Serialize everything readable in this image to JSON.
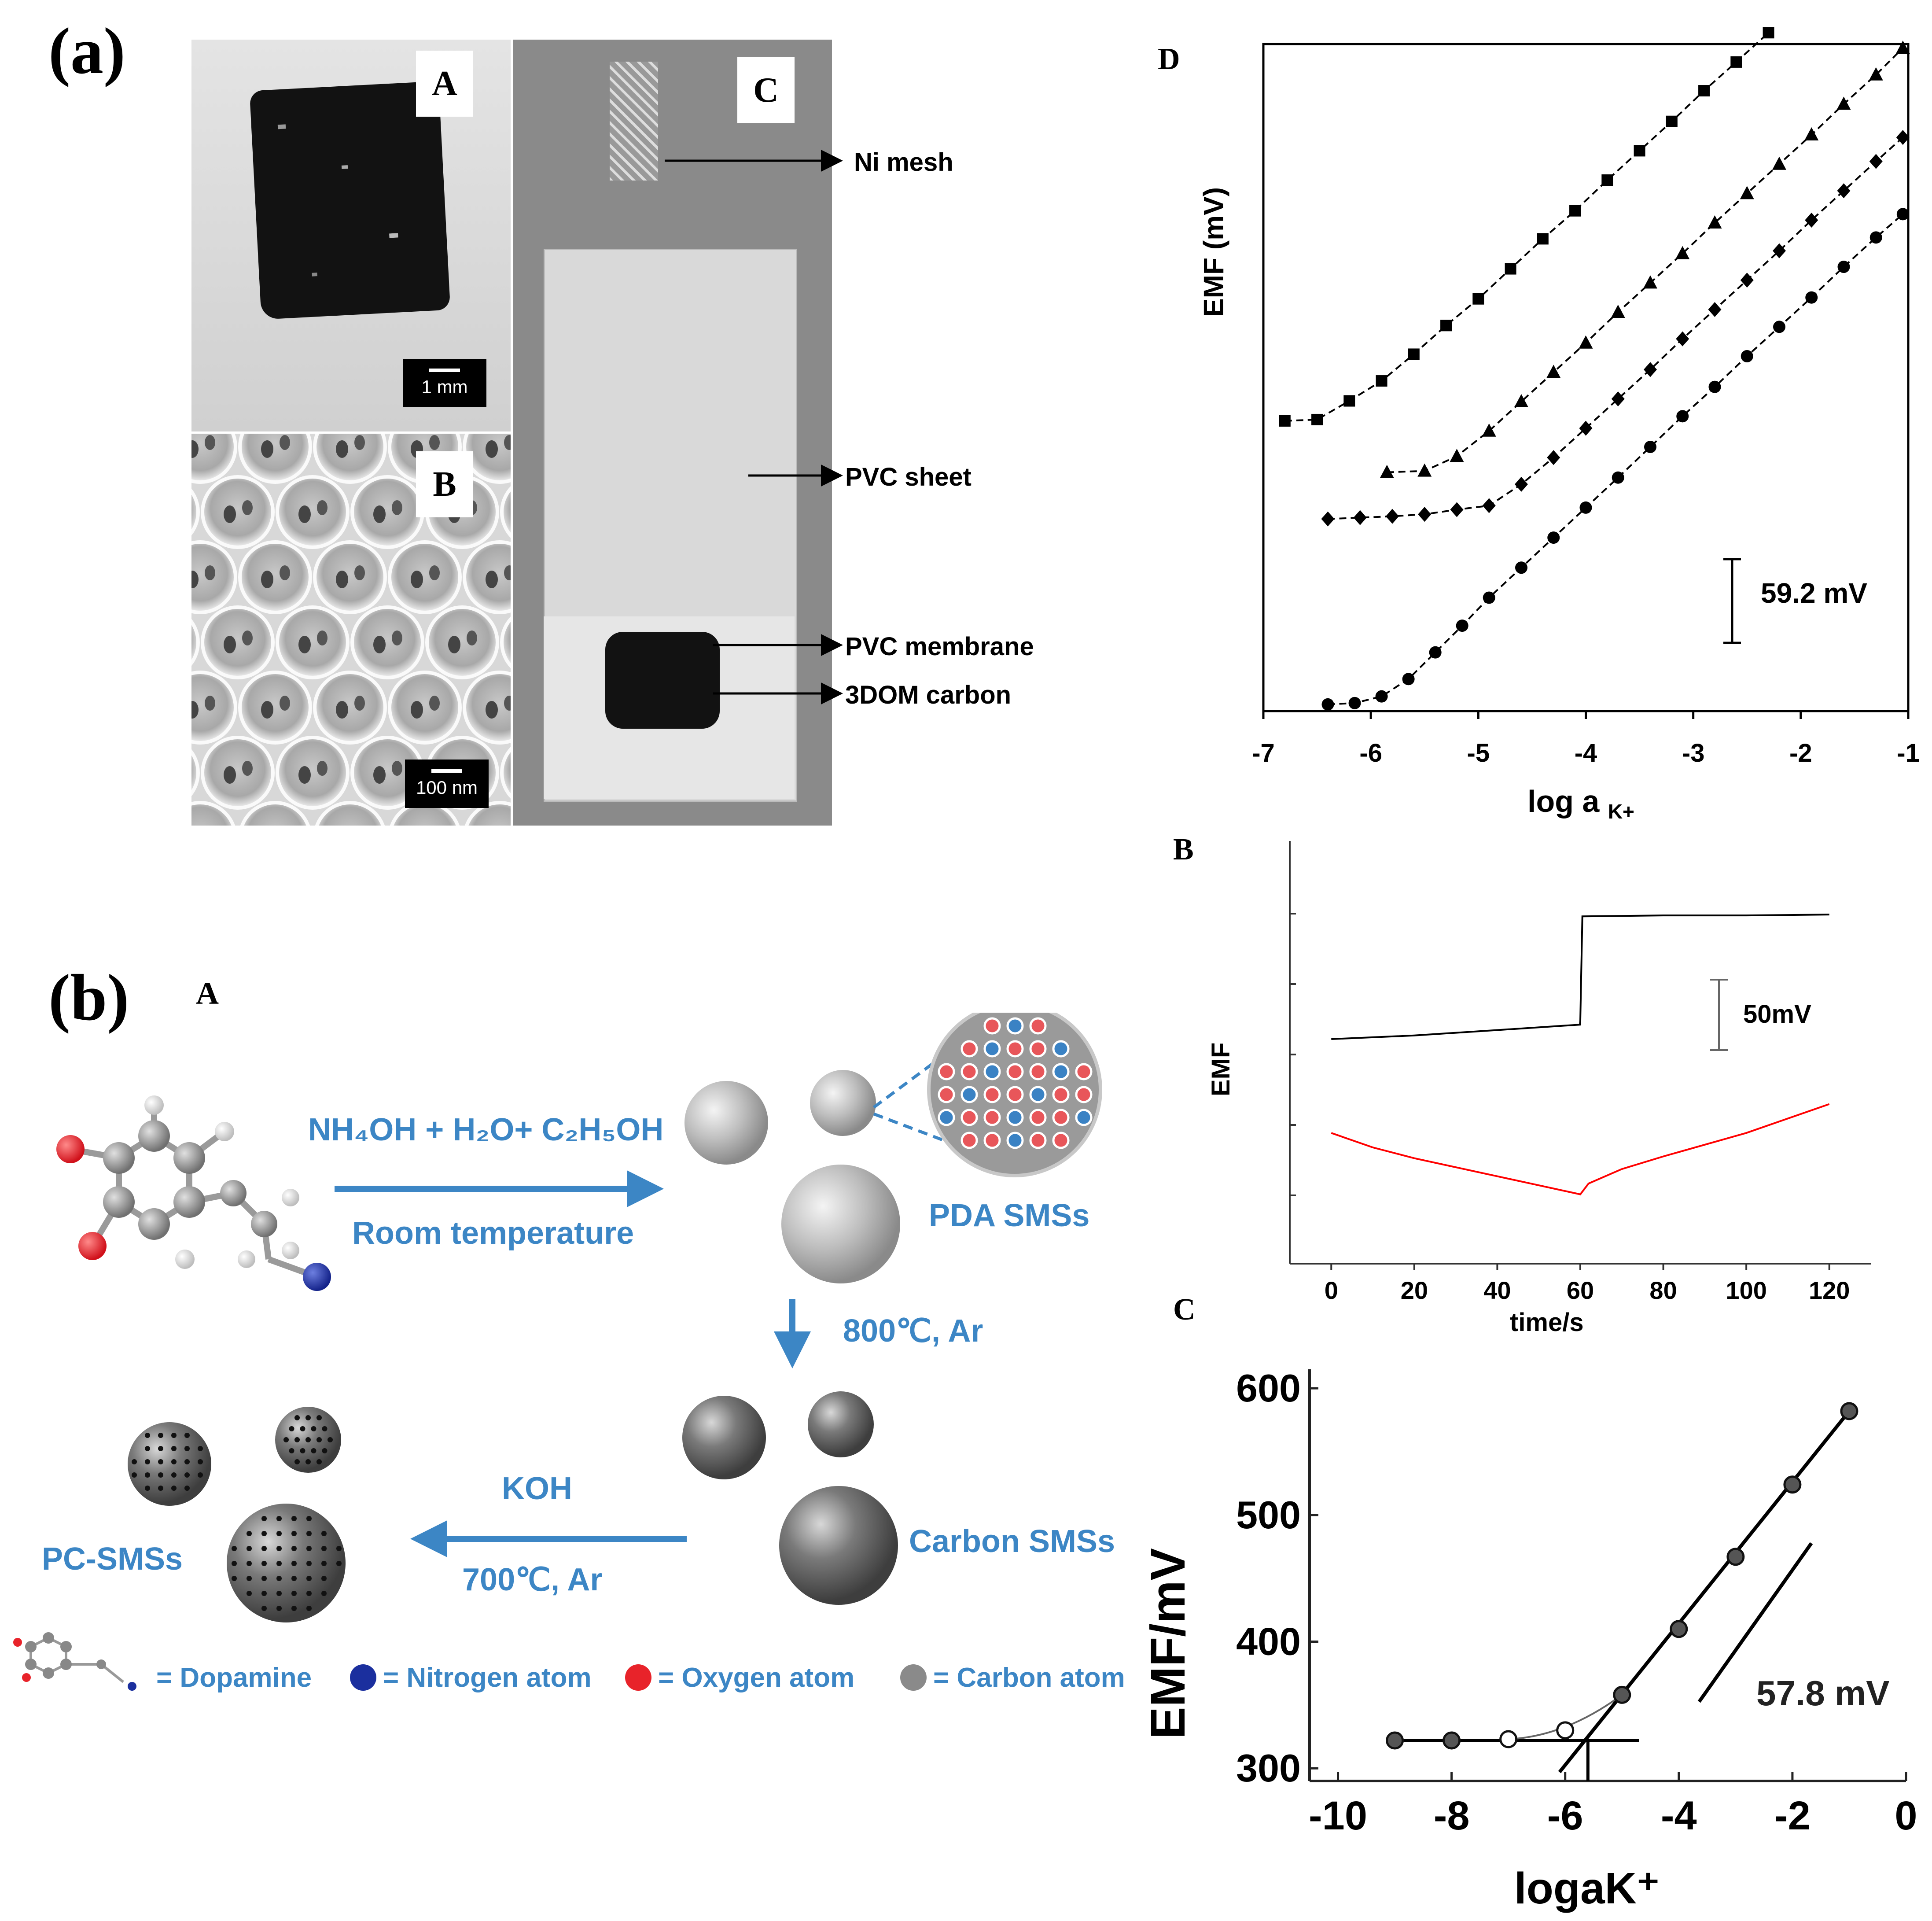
{
  "figure_labels": {
    "a": "(a)",
    "b": "(b)"
  },
  "panel_a": {
    "label_A": "A",
    "label_B": "B",
    "label_C": "C",
    "scalebar_A": "1 mm",
    "scalebar_B": "100 nm",
    "callouts": [
      "Ni mesh",
      "PVC sheet",
      "PVC membrane",
      "3DOM carbon"
    ]
  },
  "panel_b": {
    "label_A": "A",
    "arrow1_top": "NH₄OH + H₂O+ C₂H₅OH",
    "arrow1_bottom": "Room temperature",
    "pda_label": "PDA SMSs",
    "arrow2_label": "800℃, Ar",
    "carbon_label": "Carbon SMSs",
    "arrow3_top": "KOH",
    "arrow3_bottom": "700℃, Ar",
    "pc_label": "PC-SMSs",
    "legend": [
      "= Dopamine",
      "= Nitrogen atom",
      "= Oxygen atom",
      "= Carbon atom"
    ],
    "colors": {
      "accent": "#3c86c5",
      "oxygen": "#e8232a",
      "nitrogen": "#1b2f9e",
      "carbon": "#8a8a8a"
    }
  },
  "chart_data": [
    {
      "id": "D",
      "type": "scatter",
      "panel_label": "D",
      "xlabel": "log a",
      "xlabel_sub": "K+",
      "ylabel": "EMF (mV)",
      "xlim": [
        -7,
        -1
      ],
      "ylim": [
        0,
        10
      ],
      "xticks": [
        "-7",
        "-6",
        "-5",
        "-4",
        "-3",
        "-2",
        "-1"
      ],
      "scale_annotation": "59.2 mV",
      "series": [
        {
          "marker": "square",
          "x": [
            -6.8,
            -6.5,
            -6.2,
            -5.9,
            -5.6,
            -5.3,
            -5.0,
            -4.7,
            -4.4,
            -4.1,
            -3.8,
            -3.5,
            -3.2,
            -2.9,
            -2.6,
            -2.3
          ],
          "y": [
            4.35,
            4.37,
            4.65,
            4.95,
            5.35,
            5.78,
            6.18,
            6.63,
            7.08,
            7.5,
            7.96,
            8.4,
            8.84,
            9.3,
            9.73,
            10.17
          ]
        },
        {
          "marker": "triangle",
          "x": [
            -5.85,
            -5.5,
            -5.2,
            -4.9,
            -4.6,
            -4.3,
            -4.0,
            -3.7,
            -3.4,
            -3.1,
            -2.8,
            -2.5,
            -2.2,
            -1.9,
            -1.6,
            -1.3,
            -1.05
          ],
          "y": [
            3.58,
            3.6,
            3.82,
            4.2,
            4.64,
            5.08,
            5.52,
            5.98,
            6.42,
            6.86,
            7.32,
            7.76,
            8.2,
            8.64,
            9.1,
            9.54,
            9.94
          ]
        },
        {
          "marker": "diamond",
          "x": [
            -6.4,
            -6.1,
            -5.8,
            -5.5,
            -5.2,
            -4.9,
            -4.6,
            -4.3,
            -4.0,
            -3.7,
            -3.4,
            -3.1,
            -2.8,
            -2.5,
            -2.2,
            -1.9,
            -1.6,
            -1.3,
            -1.05
          ],
          "y": [
            2.88,
            2.9,
            2.92,
            2.95,
            3.02,
            3.08,
            3.4,
            3.8,
            4.24,
            4.68,
            5.12,
            5.58,
            6.02,
            6.46,
            6.9,
            7.36,
            7.8,
            8.24,
            8.6
          ]
        },
        {
          "marker": "circle",
          "x": [
            -6.4,
            -6.15,
            -5.9,
            -5.65,
            -5.4,
            -5.15,
            -4.9,
            -4.6,
            -4.3,
            -4.0,
            -3.7,
            -3.4,
            -3.1,
            -2.8,
            -2.5,
            -2.2,
            -1.9,
            -1.6,
            -1.3,
            -1.05
          ],
          "y": [
            0.1,
            0.12,
            0.22,
            0.48,
            0.88,
            1.28,
            1.7,
            2.15,
            2.6,
            3.05,
            3.5,
            3.96,
            4.42,
            4.86,
            5.32,
            5.76,
            6.2,
            6.66,
            7.1,
            7.45
          ]
        }
      ]
    },
    {
      "id": "B",
      "type": "line",
      "panel_label": "B",
      "xlabel": "time/s",
      "ylabel": "EMF",
      "xlim": [
        -10,
        130
      ],
      "xticks": [
        0,
        20,
        40,
        60,
        80,
        100,
        120
      ],
      "scale_annotation": "50mV",
      "series": [
        {
          "color": "#000000",
          "x": [
            0,
            20,
            40,
            59.9,
            60,
            60.5,
            80,
            100,
            120
          ],
          "y": [
            0,
            0.2,
            0.5,
            0.8,
            1.0,
            6.8,
            6.85,
            6.85,
            6.9
          ]
        },
        {
          "color": "#ff0000",
          "x": [
            0,
            10,
            20,
            30,
            40,
            50,
            60,
            62,
            70,
            80,
            100,
            120
          ],
          "y": [
            -5.2,
            -6.0,
            -6.6,
            -7.1,
            -7.6,
            -8.1,
            -8.6,
            -8.0,
            -7.2,
            -6.5,
            -5.2,
            -3.6
          ]
        }
      ]
    },
    {
      "id": "C",
      "type": "scatter",
      "panel_label": "C",
      "xlabel": "logaK⁺",
      "ylabel": "EMF/mV",
      "xlim": [
        -10.5,
        0
      ],
      "ylim": [
        290,
        615
      ],
      "xticks": [
        "-10",
        "-8",
        "-6",
        "-4",
        "-2",
        "0"
      ],
      "yticks": [
        "300",
        "400",
        "500",
        "600"
      ],
      "scale_annotation": "57.8 mV",
      "series": [
        {
          "name": "",
          "x": [
            -9,
            -8,
            -7,
            -6,
            -5,
            -4,
            -3,
            -2,
            -1
          ],
          "y": [
            322,
            322,
            323,
            330,
            358,
            410,
            467,
            524,
            582
          ]
        }
      ]
    }
  ]
}
